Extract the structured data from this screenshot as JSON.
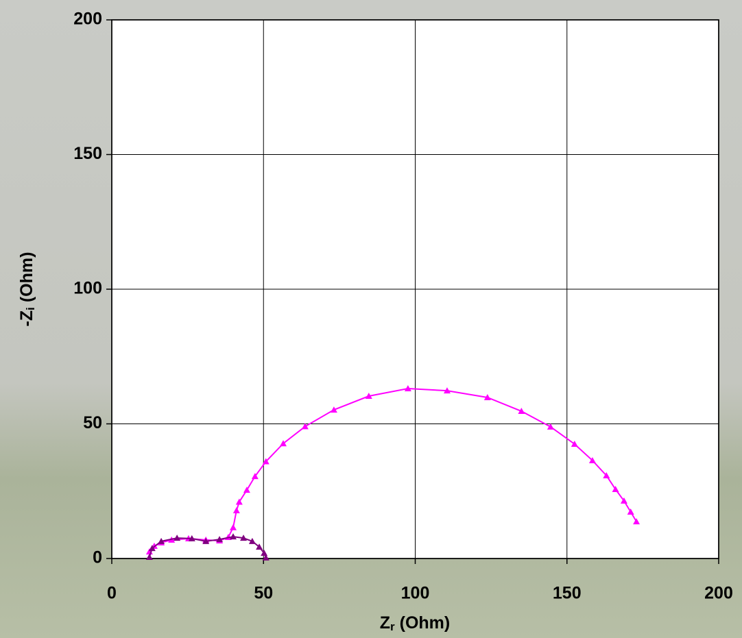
{
  "chart_data": {
    "type": "line",
    "xlabel": [
      "Z",
      "r",
      " (Ohm)"
    ],
    "ylabel": [
      "-Z",
      "i",
      " (Ohm)"
    ],
    "xlim": [
      0,
      200
    ],
    "xticks": [
      0,
      50,
      100,
      150,
      200
    ],
    "ylim": [
      0,
      200
    ],
    "yticks": [
      0,
      50,
      100,
      150,
      200
    ],
    "grid": true,
    "marker": "triangle",
    "series": [
      {
        "color": "#ff00ff",
        "x": [
          12.4,
          14,
          16.3,
          19.7,
          25.3,
          31,
          35.5,
          38.4,
          40,
          41.1,
          42,
          44.5,
          47.2,
          50.8,
          56.5,
          63.7,
          73.2,
          84.7,
          97.6,
          110.5,
          123.8,
          135,
          144.6,
          152.5,
          158.4,
          163,
          166,
          168.8,
          171,
          172.9
        ],
        "values": [
          2.5,
          4.6,
          5.9,
          6.9,
          7.4,
          6.9,
          6.6,
          7.9,
          11.5,
          17.8,
          21,
          25.4,
          30.5,
          36,
          42.7,
          49,
          55.2,
          60.3,
          63.1,
          62.3,
          59.8,
          54.7,
          48.9,
          42.5,
          36.4,
          30.8,
          25.7,
          21.4,
          17.3,
          13.7
        ]
      },
      {
        "color": "#800080",
        "x": [
          12.4,
          13.3,
          16.3,
          21.5,
          26.4,
          31,
          35.5,
          40,
          43.4,
          46.3,
          48.6,
          50.2,
          50.8
        ],
        "values": [
          0.5,
          3.8,
          6.4,
          7.6,
          7.4,
          6.4,
          7.1,
          8.1,
          7.6,
          6.4,
          4.3,
          2,
          0.3
        ]
      }
    ]
  }
}
